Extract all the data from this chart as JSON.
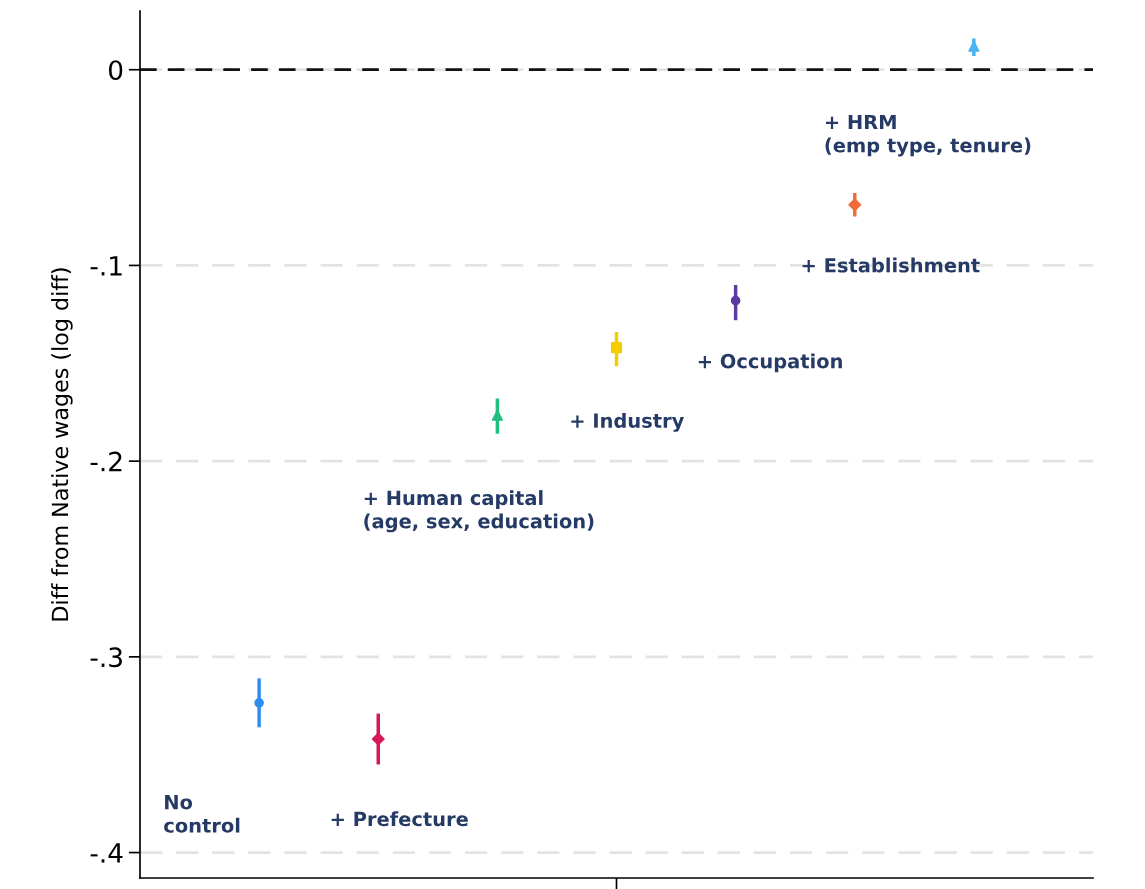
{
  "chart_data": {
    "type": "scatter",
    "ylabel": "Diff from Native wages (log diff)",
    "categories": [
      null,
      null,
      null,
      null,
      null,
      null,
      null
    ],
    "ylim": [
      -0.413,
      0.03
    ],
    "yticks": [
      {
        "value": 0,
        "label": "0"
      },
      {
        "value": -0.1,
        "label": "-.1"
      },
      {
        "value": -0.2,
        "label": "-.2"
      },
      {
        "value": -0.3,
        "label": "-.3"
      },
      {
        "value": -0.4,
        "label": "-.4"
      }
    ],
    "grid": "y",
    "tick_labels": "y",
    "annotations": [
      "No\ncontrol",
      "+ Prefecture",
      "+ Human capital\n(age, sex, education)",
      "+ Industry",
      "+ Occupation",
      "+ Establishment",
      "+ HRM\n(emp type, tenure)"
    ],
    "ref_lines": [
      {
        "axis": "y",
        "value": 0,
        "color": "#111111",
        "line_style": "dashed"
      }
    ],
    "series": [
      {
        "color": "#2e8ef0",
        "marker": "circle",
        "values": [
          -0.3235,
          null,
          null,
          null,
          null,
          null,
          null
        ],
        "errors": [
          [
            -0.336,
            -0.311
          ],
          null,
          null,
          null,
          null,
          null,
          null
        ]
      },
      {
        "color": "#d6185a",
        "marker": "diamond",
        "values": [
          null,
          -0.342,
          null,
          null,
          null,
          null,
          null
        ],
        "errors": [
          null,
          [
            -0.355,
            -0.329
          ],
          null,
          null,
          null,
          null,
          null
        ]
      },
      {
        "color": "#1fbf7f",
        "marker": "triangle",
        "values": [
          null,
          null,
          -0.1765,
          null,
          null,
          null,
          null
        ],
        "errors": [
          null,
          null,
          [
            -0.186,
            -0.168
          ],
          null,
          null,
          null,
          null
        ]
      },
      {
        "color": "#f5cc00",
        "marker": "square",
        "values": [
          null,
          null,
          null,
          -0.142,
          null,
          null,
          null
        ],
        "errors": [
          null,
          null,
          null,
          [
            -0.1515,
            -0.134
          ],
          null,
          null,
          null
        ]
      },
      {
        "color": "#5b3ba0",
        "marker": "circle",
        "values": [
          null,
          null,
          null,
          null,
          -0.118,
          null,
          null
        ],
        "errors": [
          null,
          null,
          null,
          null,
          [
            -0.128,
            -0.11
          ],
          null,
          null
        ]
      },
      {
        "color": "#f26b3a",
        "marker": "diamond",
        "values": [
          null,
          null,
          null,
          null,
          null,
          -0.069,
          null
        ],
        "errors": [
          null,
          null,
          null,
          null,
          null,
          [
            -0.075,
            -0.063
          ],
          null
        ]
      },
      {
        "color": "#4ab4f0",
        "marker": "triangle",
        "values": [
          null,
          null,
          null,
          null,
          null,
          null,
          0.012
        ],
        "errors": [
          null,
          null,
          null,
          null,
          null,
          null,
          [
            0.007,
            0.016
          ]
        ]
      }
    ]
  }
}
